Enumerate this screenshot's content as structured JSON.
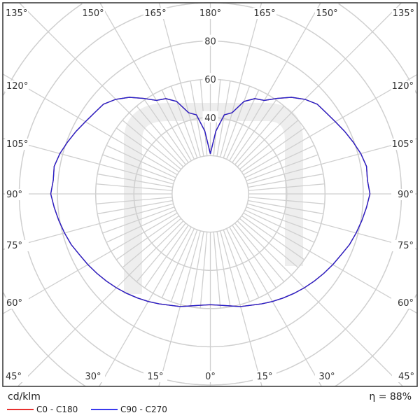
{
  "chart_data": {
    "type": "polar-line",
    "unit_label": "cd/klm",
    "efficiency_label": "η = 88%",
    "radial_ticks": [
      40,
      60,
      80
    ],
    "radial_grid": [
      20,
      40,
      60,
      80,
      100,
      120
    ],
    "angle_labels": {
      "top": [
        "135°",
        "150°",
        "165°",
        "180°",
        "165°",
        "150°",
        "135°"
      ],
      "left": [
        "120°",
        "105°",
        "90°",
        "75°",
        "60°"
      ],
      "right": [
        "120°",
        "105°",
        "90°",
        "75°",
        "60°"
      ],
      "bottom": [
        "45°",
        "30°",
        "15°",
        "0°",
        "15°",
        "30°",
        "45°"
      ]
    },
    "angles": [
      0,
      5,
      10,
      15,
      20,
      25,
      30,
      35,
      40,
      45,
      50,
      55,
      60,
      65,
      70,
      75,
      80,
      85,
      90,
      95,
      100,
      105,
      110,
      115,
      120,
      125,
      130,
      135,
      140,
      145,
      150,
      155,
      160,
      165,
      170,
      175,
      180
    ],
    "series": [
      {
        "name": "C0 - C180",
        "color": "#e8312f",
        "values": [
          58,
          58.5,
          59.5,
          61,
          62,
          63.5,
          65,
          66.5,
          68,
          69.5,
          71,
          72.5,
          74,
          75.5,
          77.5,
          79,
          80.5,
          82,
          83.5,
          82.5,
          83,
          81.5,
          79.5,
          77.5,
          75.5,
          74,
          73,
          70,
          66,
          61,
          56.5,
          55,
          51.5,
          44,
          42,
          33,
          21
        ]
      },
      {
        "name": "C90 - C270",
        "color": "#2222cc",
        "values": [
          58,
          58.5,
          59.5,
          61,
          62,
          63.5,
          65,
          66.5,
          68,
          69.5,
          71,
          72.5,
          74,
          75.5,
          77.5,
          79,
          80.5,
          82,
          83.5,
          82.5,
          83,
          81.5,
          79.5,
          77.5,
          75.5,
          74,
          73,
          70,
          66,
          61,
          56.5,
          55,
          51.5,
          44,
          42,
          33,
          21
        ]
      }
    ]
  }
}
